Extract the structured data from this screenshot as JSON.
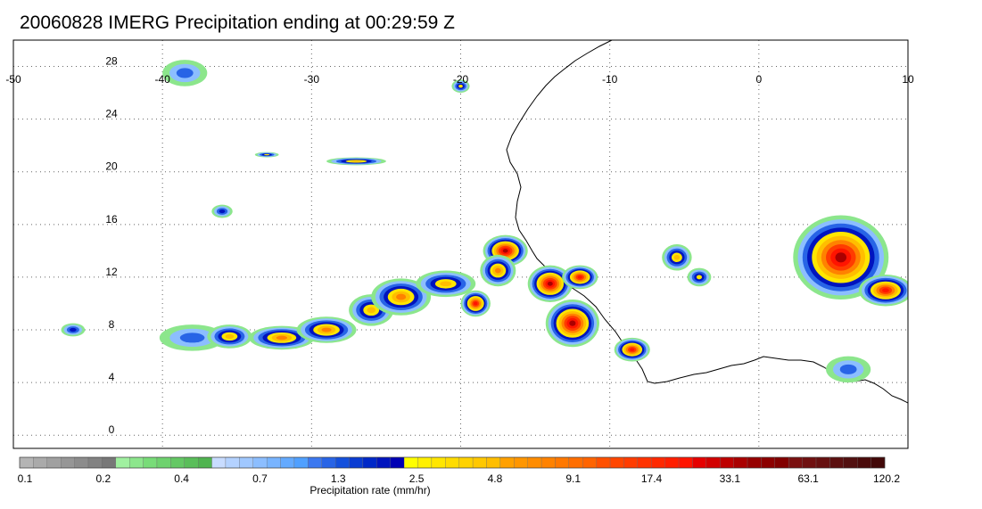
{
  "title": "20060828 IMERG Precipitation ending at 00:29:59 Z",
  "map": {
    "lon_range": [
      -50,
      10
    ],
    "lat_range": [
      -1,
      30
    ],
    "lon_ticks": [
      -50,
      -40,
      -30,
      -20,
      -10,
      0,
      10
    ],
    "lon_tick_labels": [
      "-50",
      "-40",
      "-30",
      "-20",
      "-10",
      "0",
      "10"
    ],
    "lat_ticks": [
      0,
      4,
      8,
      12,
      16,
      20,
      24,
      28
    ],
    "lat_tick_labels": [
      "0",
      "4",
      "8",
      "12",
      "16",
      "20",
      "24",
      "28"
    ],
    "grid": "dotted"
  },
  "colorbar": {
    "title": "Precipitation rate (mm/hr)",
    "colors": [
      "#b4b4b4",
      "#aaaaaa",
      "#a0a0a0",
      "#969696",
      "#8c8c8c",
      "#828282",
      "#787878",
      "#a0f0a0",
      "#8ce68c",
      "#78dc78",
      "#6ed26e",
      "#64c864",
      "#5abe5a",
      "#50b450",
      "#c8dcff",
      "#b4d2ff",
      "#a0c8ff",
      "#8cbeff",
      "#78b4ff",
      "#64aaff",
      "#50a0ff",
      "#3c78f0",
      "#2864e6",
      "#1450dc",
      "#0a3cd2",
      "#0028c8",
      "#0014be",
      "#0000b4",
      "#ffff00",
      "#fff000",
      "#ffe600",
      "#ffdc00",
      "#ffd200",
      "#ffc800",
      "#ffbe00",
      "#ffa000",
      "#ff9600",
      "#ff8c00",
      "#ff8200",
      "#ff7800",
      "#ff6e00",
      "#ff6400",
      "#ff5000",
      "#ff4600",
      "#ff3c00",
      "#ff3200",
      "#ff2800",
      "#ff1e00",
      "#ff1400",
      "#e60000",
      "#d20000",
      "#be0000",
      "#aa0000",
      "#960000",
      "#8c0000",
      "#820000",
      "#7a1010",
      "#701010",
      "#661010",
      "#5c1010",
      "#521010",
      "#4a0a0a",
      "#420808"
    ],
    "labels": [
      "0.1",
      "0.2",
      "0.4",
      "0.7",
      "1.3",
      "2.5",
      "4.8",
      "9.1",
      "17.4",
      "33.1",
      "63.1",
      "120.2"
    ]
  },
  "precip_cells": [
    {
      "lon": -46.0,
      "lat": 8.0,
      "rx": 0.8,
      "ry": 0.5,
      "level": 3
    },
    {
      "lon": -38.0,
      "lat": 7.4,
      "rx": 2.2,
      "ry": 1.0,
      "level": 2
    },
    {
      "lon": -35.5,
      "lat": 7.5,
      "rx": 1.5,
      "ry": 0.9,
      "level": 5
    },
    {
      "lon": -32.0,
      "lat": 7.4,
      "rx": 2.2,
      "ry": 0.9,
      "level": 6
    },
    {
      "lon": -29.0,
      "lat": 8.0,
      "rx": 2.0,
      "ry": 1.0,
      "level": 6
    },
    {
      "lon": -26.0,
      "lat": 9.5,
      "rx": 1.5,
      "ry": 1.2,
      "level": 5
    },
    {
      "lon": -24.0,
      "lat": 10.5,
      "rx": 2.0,
      "ry": 1.4,
      "level": 6
    },
    {
      "lon": -21.0,
      "lat": 11.5,
      "rx": 2.0,
      "ry": 1.0,
      "level": 5
    },
    {
      "lon": -19.0,
      "lat": 10.0,
      "rx": 1.0,
      "ry": 1.0,
      "level": 8
    },
    {
      "lon": -17.0,
      "lat": 14.0,
      "rx": 1.5,
      "ry": 1.2,
      "level": 9
    },
    {
      "lon": -17.5,
      "lat": 12.5,
      "rx": 1.2,
      "ry": 1.2,
      "level": 6
    },
    {
      "lon": -14.0,
      "lat": 11.5,
      "rx": 1.5,
      "ry": 1.4,
      "level": 9
    },
    {
      "lon": -12.0,
      "lat": 12.0,
      "rx": 1.2,
      "ry": 0.9,
      "level": 8
    },
    {
      "lon": -12.5,
      "lat": 8.5,
      "rx": 1.8,
      "ry": 1.8,
      "level": 9
    },
    {
      "lon": -8.5,
      "lat": 6.5,
      "rx": 1.2,
      "ry": 0.9,
      "level": 8
    },
    {
      "lon": -5.5,
      "lat": 13.5,
      "rx": 1.0,
      "ry": 1.0,
      "level": 5
    },
    {
      "lon": -4.0,
      "lat": 12.0,
      "rx": 0.8,
      "ry": 0.7,
      "level": 4
    },
    {
      "lon": 5.5,
      "lat": 13.5,
      "rx": 3.2,
      "ry": 3.2,
      "level": 9
    },
    {
      "lon": 8.5,
      "lat": 11.0,
      "rx": 1.8,
      "ry": 1.2,
      "level": 8
    },
    {
      "lon": 6.0,
      "lat": 5.0,
      "rx": 1.5,
      "ry": 1.0,
      "level": 2
    },
    {
      "lon": -20.0,
      "lat": 26.5,
      "rx": 0.6,
      "ry": 0.5,
      "level": 4
    },
    {
      "lon": -38.5,
      "lat": 27.5,
      "rx": 1.5,
      "ry": 1.0,
      "level": 2
    },
    {
      "lon": -33.0,
      "lat": 21.3,
      "rx": 0.8,
      "ry": 0.2,
      "level": 4
    },
    {
      "lon": -27.0,
      "lat": 20.8,
      "rx": 2.0,
      "ry": 0.3,
      "level": 5
    },
    {
      "lon": -36.0,
      "lat": 17.0,
      "rx": 0.7,
      "ry": 0.5,
      "level": 3
    }
  ]
}
